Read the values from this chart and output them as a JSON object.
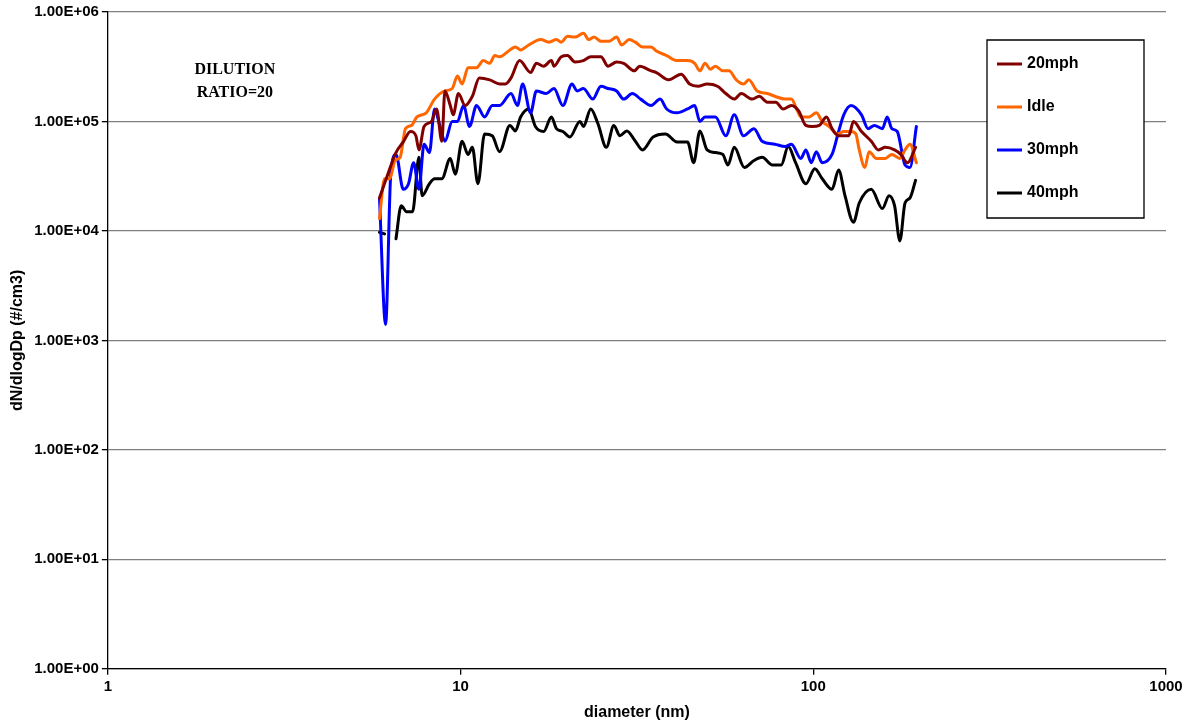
{
  "chart_data": {
    "type": "line",
    "xlabel": "diameter (nm)",
    "ylabel": "dN/dlogDp (#/cm3)",
    "log": "xy",
    "xlim": [
      1,
      1000
    ],
    "xticks": [
      1,
      10,
      100,
      1000
    ],
    "ylim": [
      1,
      1000000
    ],
    "yticks": [
      {
        "value": 1,
        "label": "1.00E+00"
      },
      {
        "value": 10,
        "label": "1.00E+01"
      },
      {
        "value": 100,
        "label": "1.00E+02"
      },
      {
        "value": 1000,
        "label": "1.00E+03"
      },
      {
        "value": 10000,
        "label": "1.00E+04"
      },
      {
        "value": 100000,
        "label": "1.00E+05"
      },
      {
        "value": 1000000,
        "label": "1.00E+06"
      }
    ],
    "grid": "y",
    "legend": "top right",
    "marker": "none",
    "annotations": [
      "DILUTION\nRATIO=20"
    ],
    "series": [
      {
        "name": "20mph",
        "color": "#800000",
        "x": [
          5.89,
          6.22,
          6.56,
          6.88,
          7.21,
          7.47,
          7.62,
          7.88,
          8.27,
          8.55,
          8.85,
          9.03,
          9.35,
          9.53,
          9.86,
          10.3,
          10.8,
          11.3,
          12.1,
          12.9,
          13.4,
          13.9,
          14.7,
          15.8,
          16.4,
          17.2,
          18.1,
          18.4,
          19.3,
          20.1,
          21.1,
          22.3,
          23.4,
          25.0,
          26.2,
          27.7,
          29.0,
          31.1,
          32.2,
          34.7,
          35.9,
          38.9,
          42.2,
          44.6,
          47.1,
          50.0,
          53.5,
          56.5,
          59.7,
          62.5,
          67.0,
          70.3,
          74.1,
          78.3,
          82.1,
          86.7,
          90.9,
          95.3,
          99.3,
          104,
          109,
          113,
          118,
          126,
          130,
          137,
          146,
          153,
          160,
          170,
          177,
          185,
          195
        ],
        "values": [
          20000,
          33000,
          52000,
          65000,
          81000,
          74000,
          55000,
          90000,
          100000,
          130000,
          66000,
          190000,
          140000,
          115000,
          180000,
          140000,
          170000,
          250000,
          240000,
          220000,
          220000,
          250000,
          360000,
          280000,
          340000,
          320000,
          360000,
          320000,
          390000,
          400000,
          350000,
          360000,
          390000,
          390000,
          320000,
          350000,
          340000,
          290000,
          320000,
          290000,
          280000,
          240000,
          270000,
          220000,
          210000,
          220000,
          210000,
          180000,
          160000,
          180000,
          160000,
          170000,
          150000,
          150000,
          130000,
          140000,
          125000,
          92000,
          90000,
          92000,
          110000,
          86000,
          74000,
          74000,
          100000,
          81000,
          66000,
          55000,
          58000,
          55000,
          50000,
          42000,
          58000
        ]
      },
      {
        "name": "Idle",
        "color": "#ff6600",
        "x": [
          5.89,
          6.09,
          6.3,
          6.52,
          6.74,
          6.98,
          7.26,
          7.52,
          7.99,
          8.44,
          9.03,
          9.47,
          9.8,
          10.1,
          10.5,
          11.1,
          11.6,
          12.1,
          12.5,
          12.9,
          13.8,
          14.3,
          14.8,
          15.6,
          16.9,
          17.8,
          18.7,
          19.3,
          20.1,
          21.1,
          22.3,
          23.1,
          23.9,
          25.0,
          26.4,
          27.7,
          28.6,
          30.1,
          31.3,
          32.8,
          34.7,
          35.9,
          38.4,
          41.1,
          44.0,
          46.1,
          47.7,
          49.3,
          51.1,
          52.8,
          55.4,
          57.7,
          60.5,
          63.4,
          65.6,
          69.3,
          74.1,
          77.8,
          83.2,
          86.7,
          89.7,
          92.2,
          97.3,
          102,
          106,
          111,
          117,
          122,
          128,
          132,
          135,
          140,
          144,
          151,
          160,
          167,
          176,
          182,
          188,
          196
        ],
        "values": [
          13000,
          30000,
          30000,
          44000,
          47000,
          86000,
          92000,
          110000,
          120000,
          160000,
          190000,
          200000,
          260000,
          220000,
          310000,
          310000,
          360000,
          340000,
          400000,
          390000,
          450000,
          480000,
          450000,
          500000,
          560000,
          530000,
          560000,
          530000,
          600000,
          590000,
          640000,
          560000,
          590000,
          540000,
          540000,
          590000,
          500000,
          560000,
          530000,
          480000,
          480000,
          440000,
          400000,
          360000,
          360000,
          340000,
          290000,
          340000,
          300000,
          320000,
          290000,
          290000,
          240000,
          220000,
          240000,
          190000,
          180000,
          170000,
          160000,
          160000,
          130000,
          110000,
          110000,
          120000,
          100000,
          90000,
          77000,
          81000,
          81000,
          77000,
          55000,
          38000,
          53000,
          46000,
          46000,
          50000,
          46000,
          55000,
          62000,
          42000
        ]
      },
      {
        "name": "30mph",
        "color": "#0000ff",
        "x": [
          5.89,
          6.13,
          6.34,
          6.56,
          6.88,
          7.12,
          7.36,
          7.62,
          7.88,
          8.16,
          8.44,
          8.73,
          9.03,
          9.47,
          9.8,
          10.2,
          10.6,
          11.1,
          11.7,
          12.3,
          12.9,
          13.9,
          14.5,
          15.0,
          15.8,
          16.4,
          17.5,
          18.4,
          19.5,
          20.7,
          21.4,
          22.3,
          23.7,
          25.0,
          26.2,
          27.7,
          29.0,
          30.7,
          32.4,
          34.7,
          36.8,
          38.4,
          41.1,
          44.0,
          46.1,
          47.7,
          49.3,
          52.8,
          56.5,
          59.7,
          63.4,
          67.9,
          71.6,
          77.8,
          83.2,
          86.7,
          92.2,
          95.3,
          98.7,
          102,
          106,
          113,
          118,
          122,
          128,
          137,
          143,
          149,
          157,
          162,
          167,
          173,
          182,
          188,
          196
        ],
        "values": [
          20000,
          1400,
          33000,
          50000,
          24000,
          27000,
          42000,
          24000,
          62000,
          52000,
          130000,
          92000,
          66000,
          100000,
          100000,
          140000,
          90000,
          140000,
          110000,
          140000,
          140000,
          180000,
          140000,
          220000,
          120000,
          190000,
          180000,
          200000,
          140000,
          220000,
          190000,
          200000,
          160000,
          210000,
          200000,
          190000,
          160000,
          180000,
          160000,
          140000,
          160000,
          130000,
          120000,
          130000,
          140000,
          100000,
          110000,
          110000,
          74000,
          115000,
          74000,
          86000,
          66000,
          62000,
          59000,
          62000,
          46000,
          55000,
          42000,
          53000,
          42000,
          50000,
          81000,
          115000,
          140000,
          115000,
          86000,
          92000,
          86000,
          110000,
          86000,
          81000,
          40000,
          38000,
          90000
        ]
      },
      {
        "name": "40mph",
        "color": "#000000",
        "x": [
          5.89,
          6.09,
          6.3,
          6.56,
          6.79,
          7.03,
          7.31,
          7.62,
          7.78,
          8.16,
          8.44,
          8.85,
          9.35,
          9.66,
          10.1,
          10.5,
          10.8,
          11.2,
          11.7,
          12.3,
          12.9,
          13.8,
          14.3,
          14.8,
          15.6,
          16.3,
          17.2,
          18.1,
          18.7,
          19.5,
          20.4,
          21.8,
          22.3,
          23.4,
          24.5,
          25.9,
          27.2,
          28.3,
          29.6,
          31.3,
          32.8,
          35.1,
          38.1,
          41.1,
          44.0,
          45.8,
          47.7,
          50.0,
          52.8,
          55.4,
          57.3,
          59.7,
          63.8,
          67.9,
          71.6,
          76.7,
          81.1,
          84.9,
          89.1,
          95.3,
          101,
          106,
          113,
          118,
          123,
          130,
          135,
          146,
          157,
          164,
          170,
          176,
          182,
          188,
          195
        ],
        "values": [
          9700,
          9400,
          null,
          8500,
          17000,
          15000,
          15000,
          47000,
          21000,
          27000,
          30000,
          30000,
          46000,
          33000,
          66000,
          50000,
          58000,
          27000,
          77000,
          74000,
          53000,
          92000,
          82000,
          110000,
          130000,
          90000,
          81000,
          110000,
          86000,
          81000,
          72000,
          100000,
          90000,
          130000,
          96000,
          58000,
          92000,
          74000,
          82000,
          66000,
          55000,
          72000,
          77000,
          65000,
          65000,
          42000,
          82000,
          55000,
          52000,
          50000,
          40000,
          58000,
          38000,
          44000,
          47000,
          40000,
          40000,
          59000,
          42000,
          27000,
          37000,
          30000,
          24000,
          36000,
          21000,
          12000,
          18000,
          24000,
          16000,
          21000,
          17000,
          8100,
          18000,
          20000,
          29000
        ]
      }
    ]
  }
}
